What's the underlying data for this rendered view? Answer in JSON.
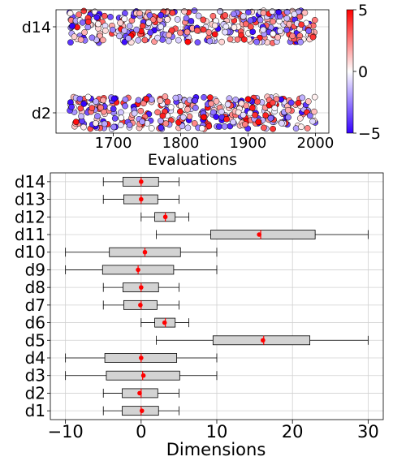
{
  "chart_data": [
    {
      "type": "scatter",
      "title": "",
      "xlabel": "Evaluations",
      "ylabel": "",
      "xlim": [
        1615,
        2020
      ],
      "xticks": [
        1700,
        1800,
        1900,
        2000
      ],
      "ycategories": [
        "d2",
        "d14"
      ],
      "grid": true,
      "colorbar": {
        "min": -5,
        "max": 5,
        "ticks": [
          "5",
          "0",
          "−5"
        ],
        "colormap": "blue-white-red",
        "colors": {
          "low": "#3300ff",
          "mid": "#ffffff",
          "high": "#ff0000"
        }
      },
      "series": [
        {
          "category": "d14",
          "x_range": [
            1635,
            2000
          ],
          "color_value_range": [
            -5,
            5
          ],
          "approx_count": 360
        },
        {
          "category": "d2",
          "x_range": [
            1635,
            2000
          ],
          "color_value_range": [
            -5,
            5
          ],
          "approx_count": 360
        }
      ]
    },
    {
      "type": "box",
      "title": "",
      "xlabel": "Dimensions",
      "ylabel": "",
      "xlim": [
        -12,
        32
      ],
      "xticks": [
        "−10",
        "0",
        "10",
        "20",
        "30"
      ],
      "xtick_values": [
        -10,
        0,
        10,
        20,
        30
      ],
      "grid": true,
      "colors": {
        "box_fill": "#d3d3d3",
        "mean_marker": "#ff0000"
      },
      "categories": [
        "d1",
        "d2",
        "d3",
        "d4",
        "d5",
        "d6",
        "d7",
        "d8",
        "d9",
        "d10",
        "d11",
        "d12",
        "d13",
        "d14"
      ],
      "boxes": [
        {
          "name": "d1",
          "whisker_low": -5,
          "q1": -2.5,
          "median": 0,
          "q3": 2.3,
          "whisker_high": 5,
          "mean": 0.1
        },
        {
          "name": "d2",
          "whisker_low": -5,
          "q1": -2.5,
          "median": 0,
          "q3": 2.2,
          "whisker_high": 5,
          "mean": -0.2
        },
        {
          "name": "d3",
          "whisker_low": -10,
          "q1": -4.6,
          "median": 0.2,
          "q3": 5.1,
          "whisker_high": 10,
          "mean": 0.3
        },
        {
          "name": "d4",
          "whisker_low": -10,
          "q1": -4.8,
          "median": 0,
          "q3": 4.7,
          "whisker_high": 10,
          "mean": 0
        },
        {
          "name": "d5",
          "whisker_low": 2,
          "q1": 9.5,
          "median": 16.2,
          "q3": 22.3,
          "whisker_high": 30,
          "mean": 16.1
        },
        {
          "name": "d6",
          "whisker_low": 0,
          "q1": 1.8,
          "median": 3.2,
          "q3": 4.5,
          "whisker_high": 6.3,
          "mean": 3.1
        },
        {
          "name": "d7",
          "whisker_low": -5,
          "q1": -2.3,
          "median": 0,
          "q3": 2.1,
          "whisker_high": 5,
          "mean": -0.1
        },
        {
          "name": "d8",
          "whisker_low": -5,
          "q1": -2.4,
          "median": 0,
          "q3": 2.3,
          "whisker_high": 5,
          "mean": 0
        },
        {
          "name": "d9",
          "whisker_low": -10,
          "q1": -5.1,
          "median": -0.4,
          "q3": 4.3,
          "whisker_high": 10,
          "mean": -0.4
        },
        {
          "name": "d10",
          "whisker_low": -10,
          "q1": -4.2,
          "median": 0.5,
          "q3": 5.2,
          "whisker_high": 10,
          "mean": 0.5
        },
        {
          "name": "d11",
          "whisker_low": 2,
          "q1": 9.2,
          "median": 15.8,
          "q3": 23,
          "whisker_high": 30,
          "mean": 15.6
        },
        {
          "name": "d12",
          "whisker_low": 0,
          "q1": 1.8,
          "median": 3.2,
          "q3": 4.5,
          "whisker_high": 6.3,
          "mean": 3.2
        },
        {
          "name": "d13",
          "whisker_low": -5,
          "q1": -2.3,
          "median": 0,
          "q3": 2.2,
          "whisker_high": 5,
          "mean": 0
        },
        {
          "name": "d14",
          "whisker_low": -5,
          "q1": -2.4,
          "median": 0,
          "q3": 2.3,
          "whisker_high": 5,
          "mean": 0
        }
      ]
    }
  ]
}
